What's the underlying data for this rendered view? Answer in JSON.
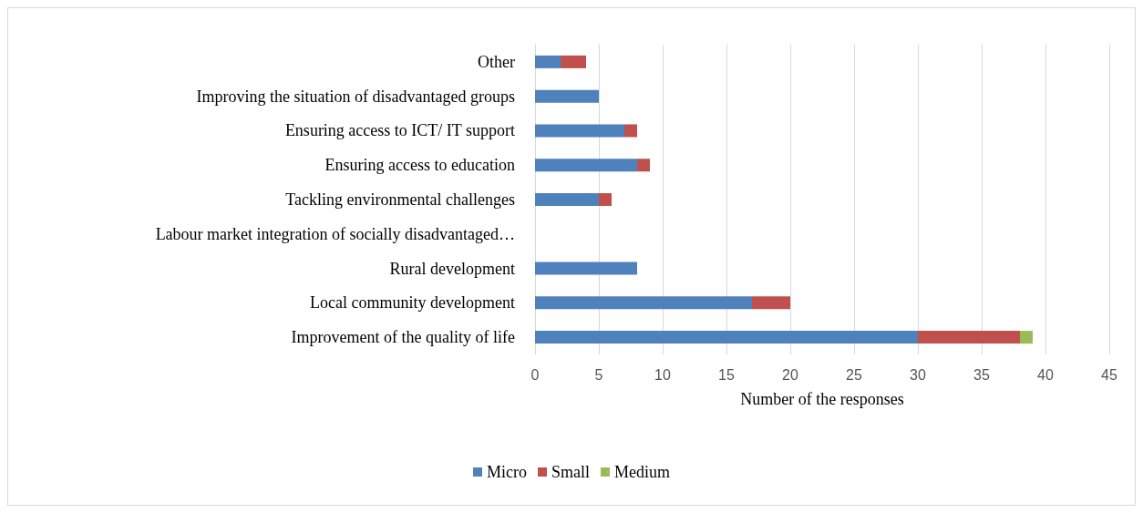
{
  "chart_data": {
    "type": "bar",
    "orientation": "horizontal",
    "stacked": true,
    "categories": [
      "Other",
      "Improving the situation of disadvantaged groups",
      "Ensuring access to ICT/ IT support",
      "Ensuring access to education",
      "Tackling environmental challenges",
      "Labour market integration of socially disadvantaged…",
      "Rural development",
      "Local community development",
      "Improvement of the quality of life"
    ],
    "series": [
      {
        "name": "Micro",
        "color": "#4f81bd",
        "values": [
          2,
          5,
          7,
          8,
          5,
          0,
          8,
          17,
          30
        ]
      },
      {
        "name": "Small",
        "color": "#c0504d",
        "values": [
          2,
          null,
          1,
          1,
          1,
          null,
          null,
          3,
          8
        ]
      },
      {
        "name": "Medium",
        "color": "#9bbb59",
        "values": [
          null,
          null,
          null,
          null,
          null,
          null,
          null,
          null,
          1
        ]
      }
    ],
    "xlabel": "Number of the responses",
    "xlim": [
      0,
      45
    ],
    "xticks": [
      0,
      5,
      10,
      15,
      20,
      25,
      30,
      35,
      40,
      45
    ],
    "grid": "x",
    "legend": "bottom"
  }
}
